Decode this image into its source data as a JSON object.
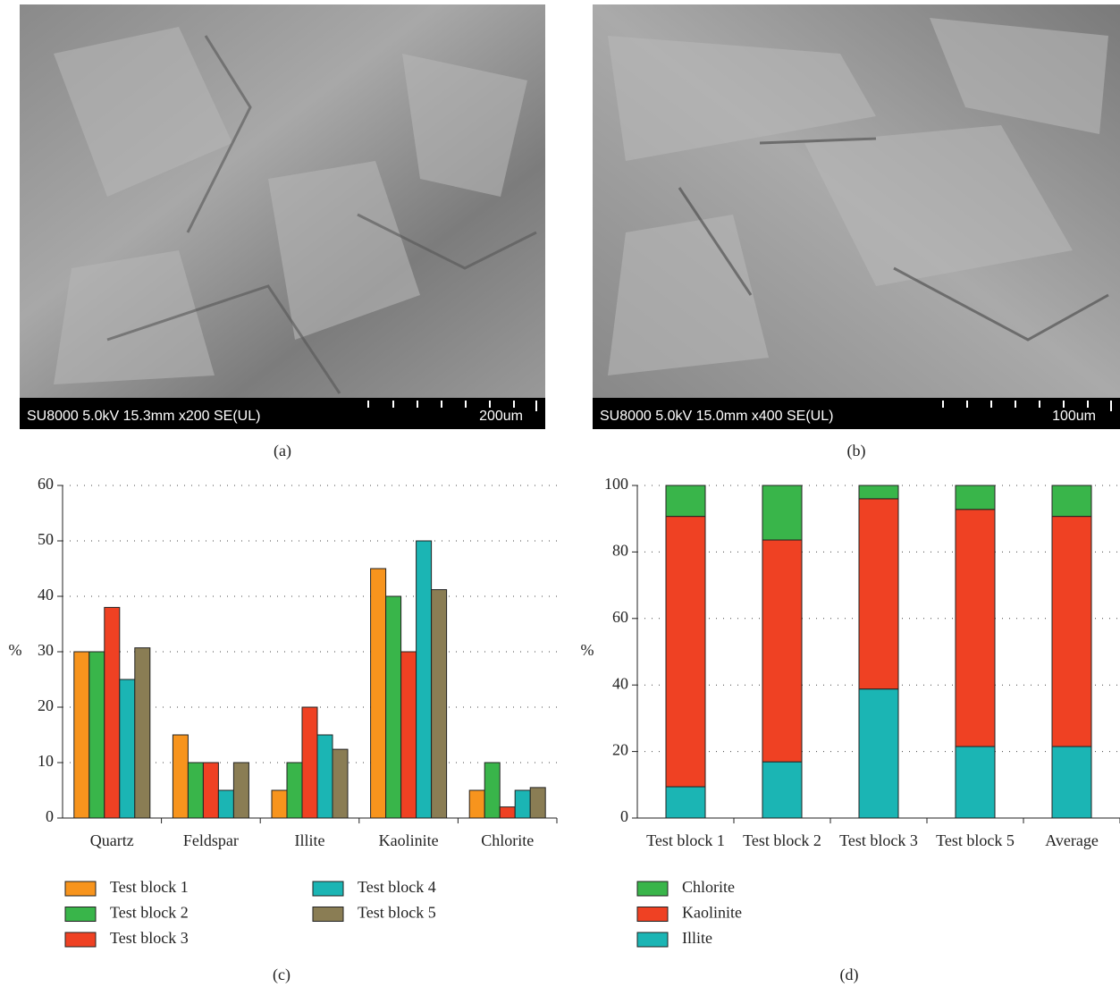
{
  "images": [
    {
      "info": "SU8000 5.0kV 15.3mm x200 SE(UL)",
      "scale": "200um",
      "caption": "(a)"
    },
    {
      "info": "SU8000 5.0kV 15.0mm x400 SE(UL)",
      "scale": "100um",
      "caption": "(b)"
    }
  ],
  "chart_data": [
    {
      "type": "bar",
      "caption": "(c)",
      "ylabel": "%",
      "categories": [
        "Quartz",
        "Feldspar",
        "Illite",
        "Kaolinite",
        "Chlorite"
      ],
      "series": [
        {
          "name": "Test block 1",
          "color": "#f7941d",
          "values": [
            30,
            15,
            5,
            45,
            5
          ]
        },
        {
          "name": "Test block 2",
          "color": "#39b54a",
          "values": [
            30,
            10,
            10,
            40,
            10
          ]
        },
        {
          "name": "Test block 3",
          "color": "#ef4123",
          "values": [
            38,
            10,
            20,
            30,
            2
          ]
        },
        {
          "name": "Test block 4",
          "color": "#1bb5b4",
          "values": [
            25,
            5,
            15,
            50,
            5
          ]
        },
        {
          "name": "Test block 5",
          "color": "#8a7d54",
          "values": [
            30.7,
            10,
            12.4,
            41.2,
            5.5
          ]
        }
      ],
      "ylim": [
        0,
        60
      ],
      "yticks": [
        0,
        10,
        20,
        30,
        40,
        50,
        60
      ],
      "grid": true
    },
    {
      "type": "stacked_bar",
      "caption": "(d)",
      "ylabel": "%",
      "categories": [
        "Test block 1",
        "Test block 2",
        "Test block 3",
        "Test block 5",
        "Average"
      ],
      "series": [
        {
          "name": "Chlorite",
          "color": "#39b54a",
          "values": [
            9.3,
            16.4,
            4.0,
            7.2,
            9.3
          ]
        },
        {
          "name": "Kaolinite",
          "color": "#ef4123",
          "values": [
            81.3,
            66.7,
            57.2,
            71.3,
            69.2
          ]
        },
        {
          "name": "Illite",
          "color": "#1bb5b4",
          "values": [
            9.4,
            16.9,
            38.8,
            21.5,
            21.5
          ]
        }
      ],
      "ylim": [
        0,
        100
      ],
      "yticks": [
        0,
        20,
        40,
        60,
        80,
        100
      ],
      "grid": true
    }
  ]
}
